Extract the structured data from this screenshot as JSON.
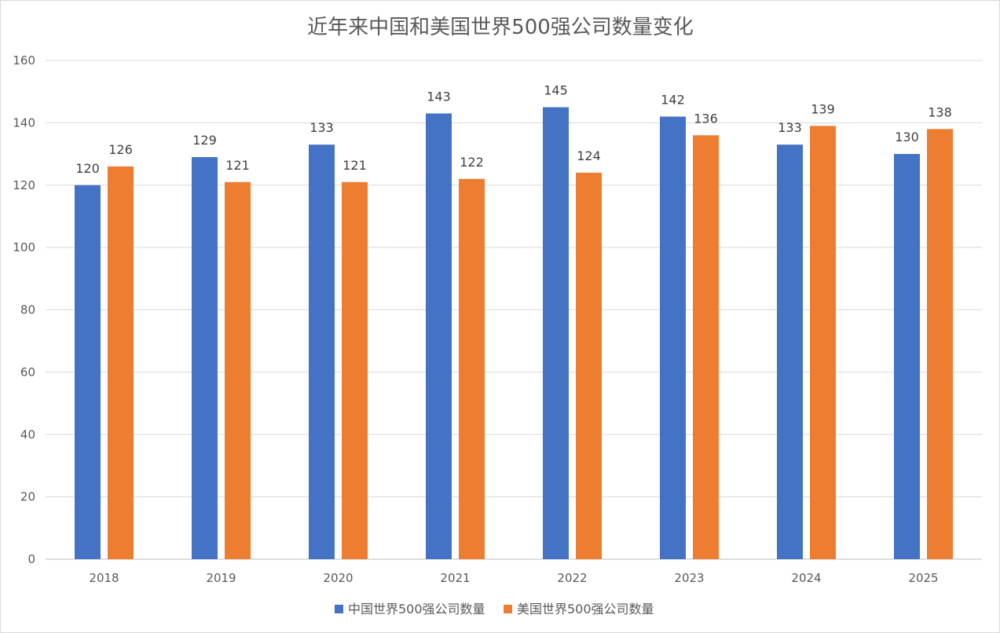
{
  "chart_data": {
    "type": "bar",
    "title": "近年来中国和美国世界500强公司数量变化",
    "xlabel": "",
    "ylabel": "",
    "categories": [
      "2018",
      "2019",
      "2020",
      "2021",
      "2022",
      "2023",
      "2024",
      "2025"
    ],
    "series": [
      {
        "name": "中国世界500强公司数量",
        "color": "#4472C4",
        "values": [
          120,
          129,
          133,
          143,
          145,
          142,
          133,
          130
        ]
      },
      {
        "name": "美国世界500强公司数量",
        "color": "#ED7D31",
        "values": [
          126,
          121,
          121,
          122,
          124,
          136,
          139,
          138
        ]
      }
    ],
    "ylim": [
      0,
      160
    ],
    "yticks": [
      "0",
      "20",
      "40",
      "60",
      "80",
      "100",
      "120",
      "140",
      "160"
    ],
    "grid": true,
    "data_labels": true,
    "legend_position": "bottom"
  }
}
